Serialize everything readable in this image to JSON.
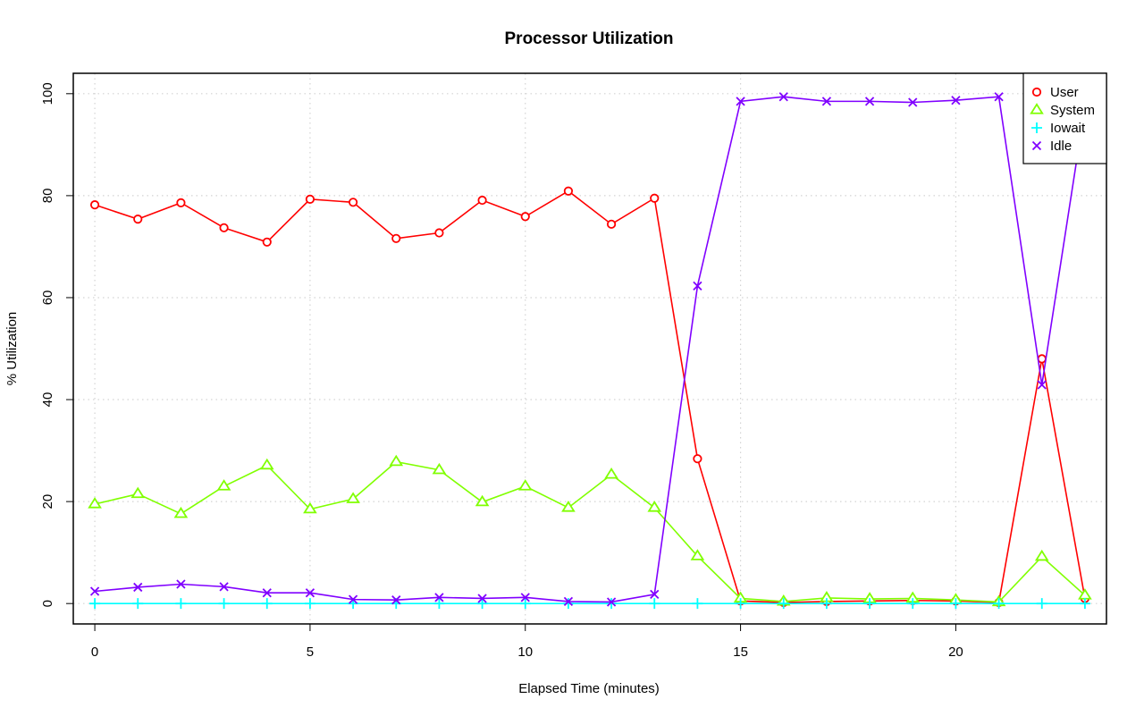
{
  "chart_data": {
    "type": "line",
    "title": "Processor Utilization",
    "xlabel": "Elapsed Time (minutes)",
    "ylabel": "% Utilization",
    "x": [
      0,
      1,
      2,
      3,
      4,
      5,
      6,
      7,
      8,
      9,
      10,
      11,
      12,
      13,
      14,
      15,
      16,
      17,
      18,
      19,
      20,
      21,
      22,
      23
    ],
    "xlim": [
      -0.5,
      23.5
    ],
    "ylim": [
      -4,
      104
    ],
    "x_ticks": [
      0,
      5,
      10,
      15,
      20
    ],
    "x_tick_labels": [
      "0",
      "5",
      "10",
      "15",
      "20"
    ],
    "y_ticks": [
      0,
      20,
      40,
      60,
      80,
      100
    ],
    "y_tick_labels": [
      "0",
      "20",
      "40",
      "60",
      "80",
      "100"
    ],
    "grid": true,
    "legend_position": "top-right",
    "series": [
      {
        "name": "User",
        "color": "#ff0000",
        "marker": "circle",
        "values": [
          78.2,
          75.4,
          78.6,
          73.7,
          70.9,
          79.3,
          78.7,
          71.6,
          72.7,
          79.1,
          75.9,
          80.9,
          74.4,
          79.5,
          28.4,
          0.5,
          0.2,
          0.4,
          0.5,
          0.6,
          0.5,
          0.2,
          48.0,
          1.0
        ]
      },
      {
        "name": "System",
        "color": "#80ff00",
        "marker": "triangle",
        "values": [
          19.5,
          21.5,
          17.6,
          23.0,
          27.1,
          18.5,
          20.5,
          27.8,
          26.2,
          19.9,
          23.0,
          18.8,
          25.3,
          18.8,
          9.3,
          1.0,
          0.4,
          1.1,
          0.9,
          1.0,
          0.7,
          0.3,
          9.2,
          1.6
        ]
      },
      {
        "name": "Iowait",
        "color": "#00ffff",
        "marker": "plus",
        "values": [
          0,
          0,
          0,
          0,
          0,
          0,
          0,
          0,
          0,
          0,
          0,
          0,
          0,
          0,
          0,
          0,
          0,
          0,
          0,
          0,
          0,
          0,
          0,
          0
        ]
      },
      {
        "name": "Idle",
        "color": "#8000ff",
        "marker": "x",
        "values": [
          2.4,
          3.2,
          3.8,
          3.3,
          2.1,
          2.1,
          0.8,
          0.7,
          1.2,
          1.0,
          1.2,
          0.4,
          0.3,
          1.8,
          62.3,
          98.5,
          99.4,
          98.5,
          98.5,
          98.3,
          98.7,
          99.4,
          42.9,
          97.4
        ]
      }
    ]
  }
}
